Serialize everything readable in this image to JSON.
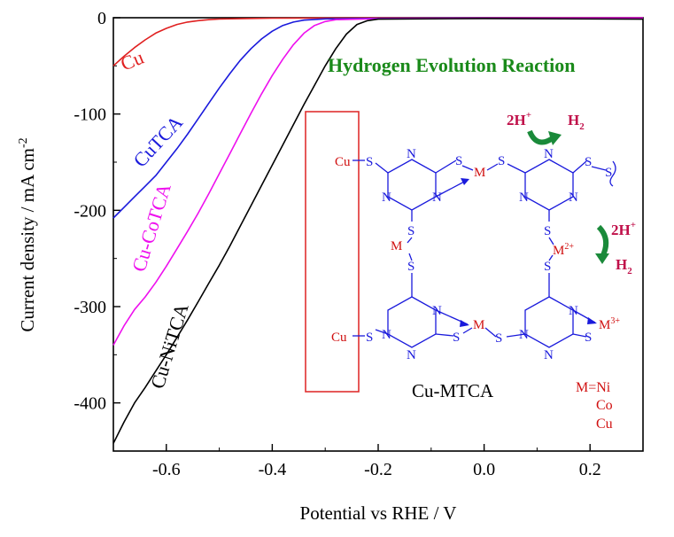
{
  "chart_data": {
    "type": "line",
    "xlabel": "Potential vs RHE / V",
    "ylabel": "Current density / mA cm",
    "ylabel_sup": "-2",
    "xlim": [
      -0.7,
      0.3
    ],
    "ylim": [
      -450,
      0
    ],
    "xticks": [
      -0.6,
      -0.4,
      -0.2,
      0.0,
      0.2
    ],
    "xtick_labels": [
      "-0.6",
      "-0.4",
      "-0.2",
      "0.0",
      "0.2"
    ],
    "yticks": [
      0,
      -100,
      -200,
      -300,
      -400
    ],
    "ytick_labels": [
      "0",
      "-100",
      "-200",
      "-300",
      "-400"
    ],
    "grid": false,
    "series": [
      {
        "name": "Cu",
        "color": "#e02020",
        "points": [
          [
            -0.7,
            -50
          ],
          [
            -0.68,
            -40
          ],
          [
            -0.66,
            -31
          ],
          [
            -0.64,
            -23
          ],
          [
            -0.62,
            -16
          ],
          [
            -0.6,
            -11
          ],
          [
            -0.58,
            -7
          ],
          [
            -0.56,
            -4.5
          ],
          [
            -0.54,
            -3
          ],
          [
            -0.52,
            -2
          ],
          [
            -0.5,
            -1.4
          ],
          [
            -0.45,
            -0.8
          ],
          [
            -0.4,
            -0.5
          ],
          [
            -0.3,
            -0.3
          ],
          [
            -0.2,
            -0.2
          ],
          [
            0.0,
            -0.1
          ],
          [
            0.3,
            0
          ]
        ]
      },
      {
        "name": "CuTCA",
        "color": "#1a1adc",
        "points": [
          [
            -0.7,
            -208
          ],
          [
            -0.68,
            -197
          ],
          [
            -0.66,
            -186
          ],
          [
            -0.64,
            -175
          ],
          [
            -0.62,
            -164
          ],
          [
            -0.6,
            -150
          ],
          [
            -0.58,
            -136
          ],
          [
            -0.56,
            -121
          ],
          [
            -0.54,
            -105
          ],
          [
            -0.52,
            -89
          ],
          [
            -0.5,
            -73
          ],
          [
            -0.48,
            -58
          ],
          [
            -0.46,
            -44
          ],
          [
            -0.44,
            -32
          ],
          [
            -0.42,
            -22
          ],
          [
            -0.4,
            -14
          ],
          [
            -0.38,
            -8
          ],
          [
            -0.36,
            -4.5
          ],
          [
            -0.34,
            -2.5
          ],
          [
            -0.3,
            -1.2
          ],
          [
            -0.2,
            -0.6
          ],
          [
            0.0,
            -0.3
          ],
          [
            0.3,
            -0.2
          ]
        ]
      },
      {
        "name": "Cu-CoTCA",
        "color": "#ee10ee",
        "points": [
          [
            -0.7,
            -340
          ],
          [
            -0.68,
            -320
          ],
          [
            -0.66,
            -303
          ],
          [
            -0.64,
            -290
          ],
          [
            -0.62,
            -275
          ],
          [
            -0.6,
            -258
          ],
          [
            -0.58,
            -240
          ],
          [
            -0.56,
            -222
          ],
          [
            -0.54,
            -203
          ],
          [
            -0.52,
            -183
          ],
          [
            -0.5,
            -162
          ],
          [
            -0.48,
            -141
          ],
          [
            -0.46,
            -120
          ],
          [
            -0.44,
            -99
          ],
          [
            -0.42,
            -79
          ],
          [
            -0.4,
            -60
          ],
          [
            -0.38,
            -43
          ],
          [
            -0.36,
            -28
          ],
          [
            -0.34,
            -16
          ],
          [
            -0.32,
            -8
          ],
          [
            -0.3,
            -4
          ],
          [
            -0.28,
            -2
          ],
          [
            -0.2,
            -1
          ],
          [
            0.0,
            -0.5
          ],
          [
            0.3,
            -0.3
          ]
        ]
      },
      {
        "name": "Cu-NiTCA",
        "color": "#000000",
        "points": [
          [
            -0.7,
            -442
          ],
          [
            -0.68,
            -420
          ],
          [
            -0.66,
            -400
          ],
          [
            -0.64,
            -384
          ],
          [
            -0.62,
            -367
          ],
          [
            -0.6,
            -350
          ],
          [
            -0.58,
            -332
          ],
          [
            -0.56,
            -314
          ],
          [
            -0.54,
            -295
          ],
          [
            -0.52,
            -276
          ],
          [
            -0.5,
            -257
          ],
          [
            -0.48,
            -237
          ],
          [
            -0.46,
            -216
          ],
          [
            -0.44,
            -195
          ],
          [
            -0.42,
            -174
          ],
          [
            -0.4,
            -153
          ],
          [
            -0.38,
            -132
          ],
          [
            -0.36,
            -111
          ],
          [
            -0.34,
            -90
          ],
          [
            -0.32,
            -70
          ],
          [
            -0.3,
            -50
          ],
          [
            -0.28,
            -32
          ],
          [
            -0.26,
            -17
          ],
          [
            -0.24,
            -7
          ],
          [
            -0.22,
            -3
          ],
          [
            -0.2,
            -1.5
          ],
          [
            0.0,
            -0.8
          ],
          [
            0.3,
            -1.5
          ]
        ]
      }
    ]
  },
  "labels": {
    "cu": "Cu",
    "cutca": "CuTCA",
    "cucotca": "Cu-CoTCA",
    "cunitca": "Cu-NiTCA",
    "her_title": "Hydrogen Evolution Reaction",
    "mtca": "Cu-MTCA",
    "metal_key": "M=Ni",
    "metal_co": "Co",
    "metal_cu": "Cu",
    "h_plus": "2H",
    "h_plus_sup": "+",
    "h2": "H",
    "h2_sub": "2"
  },
  "structure": {
    "cu_top": "Cu",
    "cu_bottom": "Cu",
    "s": "S",
    "n": "N",
    "m": "M",
    "m2": "M",
    "m2_sup": "2+",
    "m3": "M",
    "m3_sup": "3+"
  },
  "colors": {
    "her_green": "#1a8a1a",
    "arrow_green": "#1a8a3a",
    "structure_blue": "#1a1adc",
    "metal_red": "#d01010",
    "hydrogen_red": "#c0104a",
    "box_red": "#e03030"
  }
}
